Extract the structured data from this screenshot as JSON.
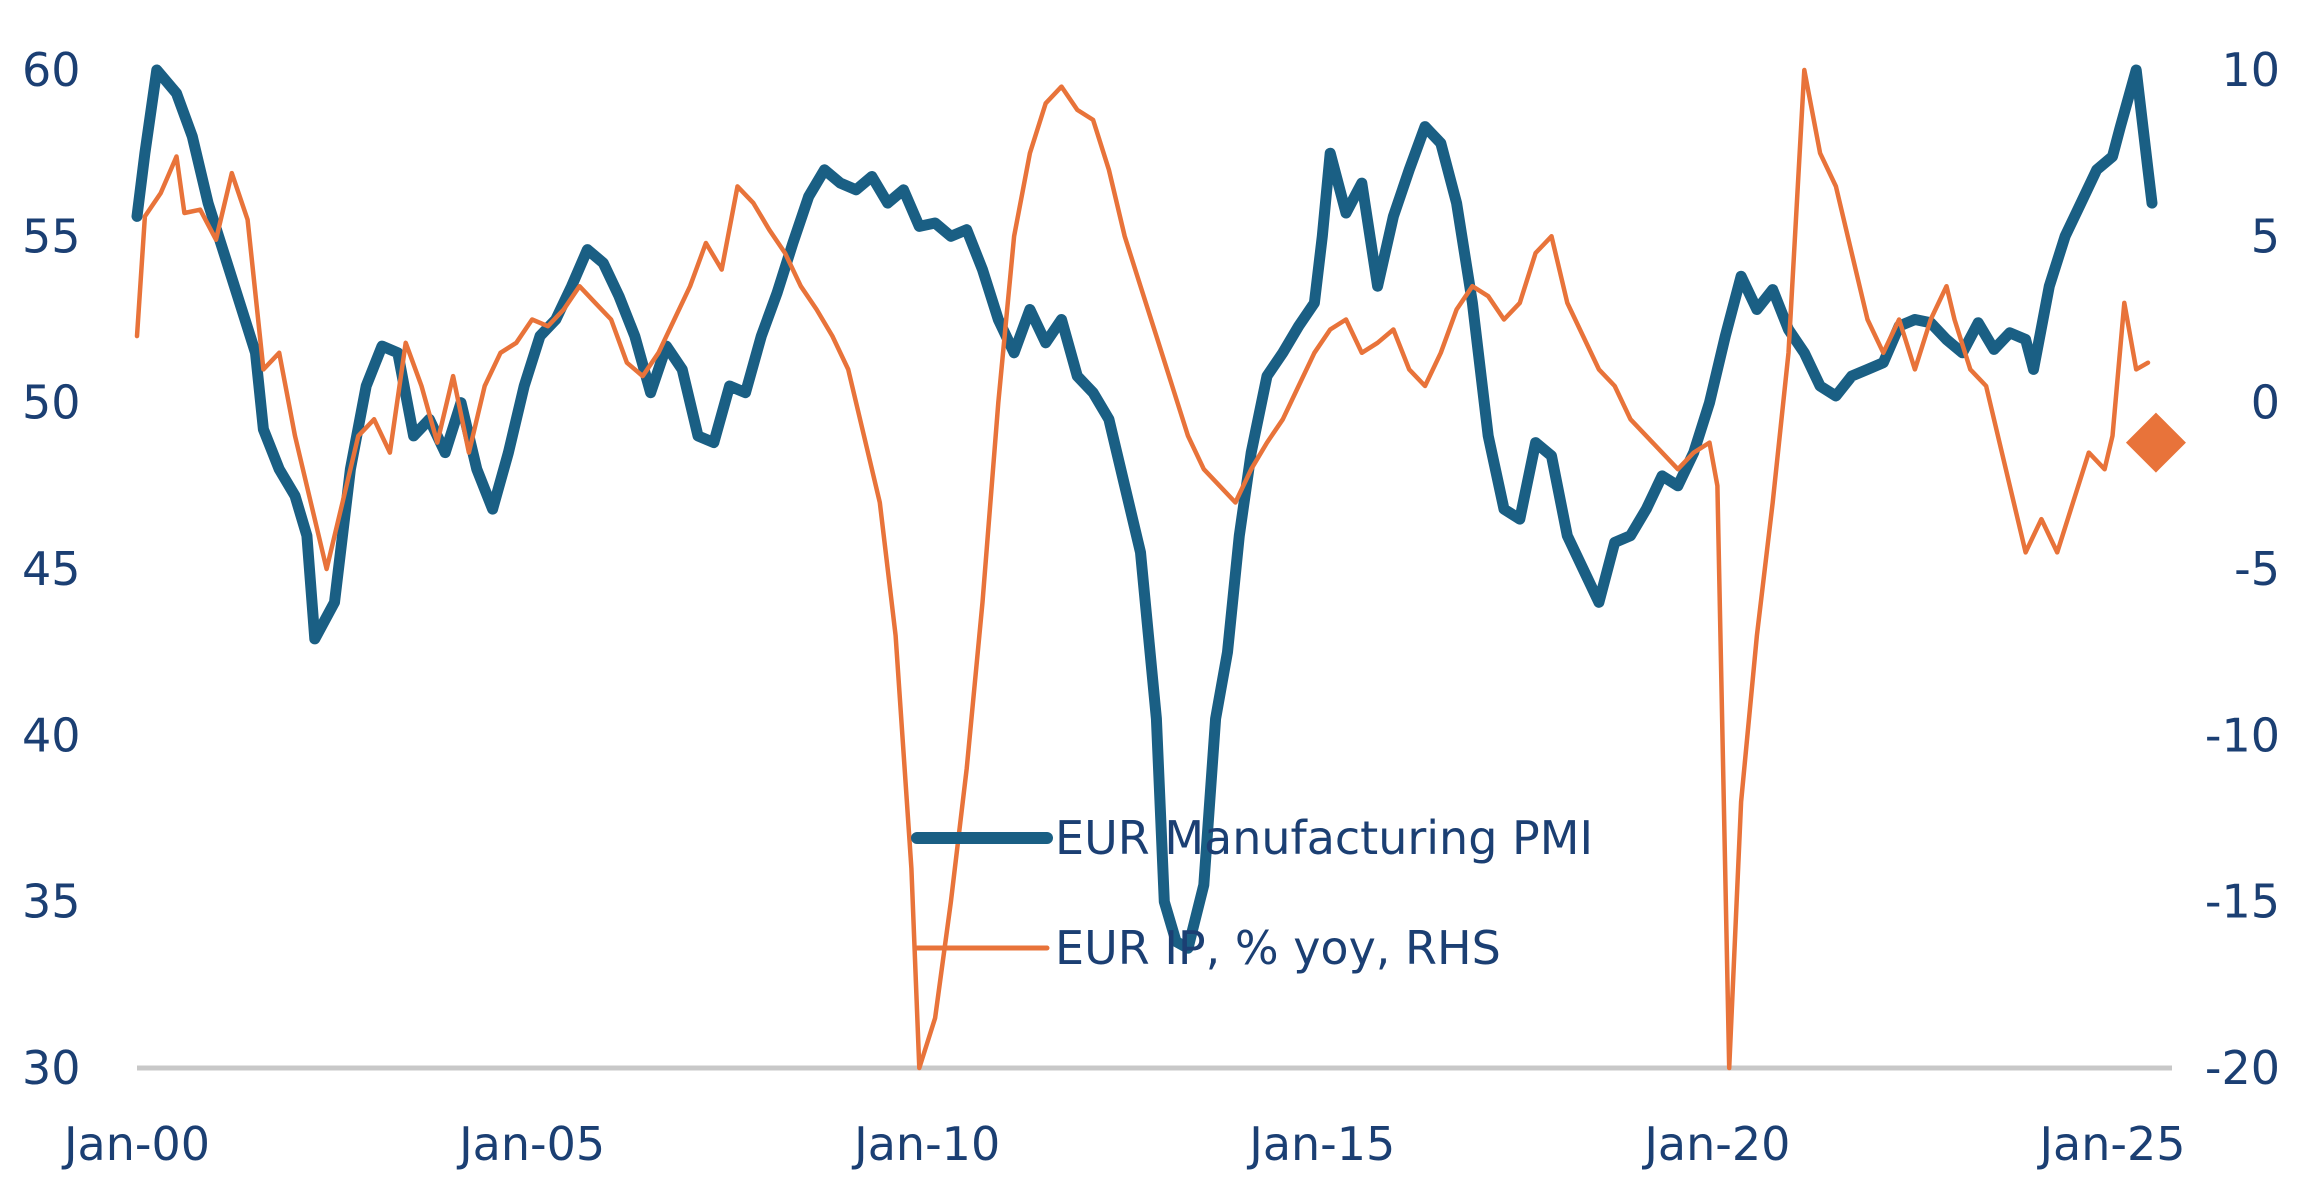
{
  "chart_data": {
    "type": "line",
    "title": "",
    "xlabel": "",
    "ylabel": "",
    "x_start_year": 2000,
    "x_end_year": 2025.5,
    "x_ticks": [
      {
        "label": "Jan-00",
        "year": 2000
      },
      {
        "label": "Jan-05",
        "year": 2005
      },
      {
        "label": "Jan-10",
        "year": 2010
      },
      {
        "label": "Jan-15",
        "year": 2015
      },
      {
        "label": "Jan-20",
        "year": 2020
      },
      {
        "label": "Jan-25",
        "year": 2025
      }
    ],
    "y_left": {
      "min": 30,
      "max": 60,
      "ticks": [
        "60",
        "55",
        "50",
        "45",
        "40",
        "35",
        "30"
      ],
      "values": [
        60,
        55,
        50,
        45,
        40,
        35,
        30
      ]
    },
    "y_right": {
      "min": -20,
      "max": 10,
      "ticks": [
        "10",
        "5",
        "0",
        "-5",
        "-10",
        "-15",
        "-20"
      ],
      "values": [
        10,
        5,
        0,
        -5,
        -10,
        -15,
        -20
      ]
    },
    "grid": false,
    "legend": {
      "position": "center-bottom"
    },
    "series": [
      {
        "name": "EUR Manufacturing PMI",
        "axis": "left",
        "color": "#1a5f84",
        "points": [
          [
            2000.0,
            55.6
          ],
          [
            2000.1,
            57.5
          ],
          [
            2000.25,
            60.0
          ],
          [
            2000.5,
            59.3
          ],
          [
            2000.7,
            58.0
          ],
          [
            2000.9,
            56.0
          ],
          [
            2001.1,
            54.5
          ],
          [
            2001.3,
            53.0
          ],
          [
            2001.5,
            51.5
          ],
          [
            2001.6,
            49.2
          ],
          [
            2001.8,
            48.0
          ],
          [
            2002.0,
            47.2
          ],
          [
            2002.15,
            46.0
          ],
          [
            2002.25,
            42.9
          ],
          [
            2002.5,
            44.0
          ],
          [
            2002.7,
            48.0
          ],
          [
            2002.9,
            50.5
          ],
          [
            2003.1,
            51.7
          ],
          [
            2003.3,
            51.5
          ],
          [
            2003.5,
            49.0
          ],
          [
            2003.7,
            49.5
          ],
          [
            2003.9,
            48.5
          ],
          [
            2004.1,
            50.0
          ],
          [
            2004.3,
            48.0
          ],
          [
            2004.5,
            46.8
          ],
          [
            2004.7,
            48.5
          ],
          [
            2004.9,
            50.5
          ],
          [
            2005.1,
            52.0
          ],
          [
            2005.3,
            52.5
          ],
          [
            2005.5,
            53.5
          ],
          [
            2005.7,
            54.6
          ],
          [
            2005.9,
            54.2
          ],
          [
            2006.1,
            53.2
          ],
          [
            2006.3,
            52.0
          ],
          [
            2006.5,
            50.3
          ],
          [
            2006.7,
            51.7
          ],
          [
            2006.9,
            51.0
          ],
          [
            2007.1,
            49.0
          ],
          [
            2007.3,
            48.8
          ],
          [
            2007.5,
            50.5
          ],
          [
            2007.7,
            50.3
          ],
          [
            2007.9,
            52.0
          ],
          [
            2008.1,
            53.3
          ],
          [
            2008.3,
            54.8
          ],
          [
            2008.5,
            56.2
          ],
          [
            2008.7,
            57.0
          ],
          [
            2008.9,
            56.6
          ],
          [
            2009.1,
            56.4
          ],
          [
            2009.3,
            56.8
          ],
          [
            2009.5,
            56.0
          ],
          [
            2009.7,
            56.4
          ],
          [
            2009.9,
            55.3
          ],
          [
            2010.1,
            55.4
          ],
          [
            2010.3,
            55.0
          ],
          [
            2010.5,
            55.2
          ],
          [
            2010.7,
            54.0
          ],
          [
            2010.9,
            52.5
          ],
          [
            2011.1,
            51.5
          ],
          [
            2011.3,
            52.8
          ],
          [
            2011.5,
            51.8
          ],
          [
            2011.7,
            52.5
          ],
          [
            2011.9,
            50.8
          ],
          [
            2012.1,
            50.3
          ],
          [
            2012.3,
            49.5
          ],
          [
            2012.5,
            47.5
          ],
          [
            2012.7,
            45.5
          ],
          [
            2012.9,
            40.5
          ],
          [
            2013.0,
            35.0
          ],
          [
            2013.15,
            33.8
          ],
          [
            2013.3,
            33.6
          ],
          [
            2013.5,
            35.5
          ],
          [
            2013.65,
            40.5
          ],
          [
            2013.8,
            42.5
          ],
          [
            2013.95,
            46.0
          ],
          [
            2014.1,
            48.5
          ],
          [
            2014.3,
            50.8
          ],
          [
            2014.5,
            51.5
          ],
          [
            2014.7,
            52.3
          ],
          [
            2014.9,
            53.0
          ],
          [
            2015.0,
            55.0
          ],
          [
            2015.1,
            57.5
          ],
          [
            2015.3,
            55.7
          ],
          [
            2015.5,
            56.6
          ],
          [
            2015.7,
            53.5
          ],
          [
            2015.9,
            55.6
          ],
          [
            2016.1,
            57.0
          ],
          [
            2016.3,
            58.3
          ],
          [
            2016.5,
            57.8
          ],
          [
            2016.7,
            56.0
          ],
          [
            2016.9,
            53.0
          ],
          [
            2017.1,
            49.0
          ],
          [
            2017.3,
            46.8
          ],
          [
            2017.5,
            46.5
          ],
          [
            2017.7,
            48.8
          ],
          [
            2017.9,
            48.4
          ],
          [
            2018.1,
            46.0
          ],
          [
            2018.3,
            45.0
          ],
          [
            2018.5,
            44.0
          ],
          [
            2018.7,
            45.8
          ],
          [
            2018.9,
            46.0
          ],
          [
            2019.1,
            46.8
          ],
          [
            2019.3,
            47.8
          ],
          [
            2019.5,
            47.5
          ],
          [
            2019.7,
            48.5
          ],
          [
            2019.9,
            50.0
          ],
          [
            2020.1,
            52.0
          ],
          [
            2020.3,
            53.8
          ],
          [
            2020.5,
            52.8
          ],
          [
            2020.7,
            53.4
          ],
          [
            2020.9,
            52.2
          ],
          [
            2021.1,
            51.5
          ],
          [
            2021.3,
            50.5
          ],
          [
            2021.5,
            50.2
          ],
          [
            2021.7,
            50.8
          ],
          [
            2021.9,
            51.0
          ],
          [
            2022.1,
            51.2
          ],
          [
            2022.3,
            52.3
          ],
          [
            2022.5,
            52.5
          ],
          [
            2022.7,
            52.4
          ],
          [
            2022.9,
            51.9
          ],
          [
            2023.1,
            51.5
          ],
          [
            2023.3,
            52.4
          ],
          [
            2023.5,
            51.6
          ],
          [
            2023.7,
            52.1
          ],
          [
            2023.9,
            51.9
          ],
          [
            2024.0,
            51.0
          ],
          [
            2024.2,
            53.5
          ],
          [
            2024.4,
            55.0
          ],
          [
            2024.6,
            56.0
          ],
          [
            2024.8,
            57.0
          ],
          [
            2025.0,
            57.4
          ],
          [
            2025.1,
            58.3
          ],
          [
            2025.3,
            60.0
          ],
          [
            2025.45,
            57.0
          ],
          [
            2025.5,
            56.0
          ]
        ]
      },
      {
        "name": "EUR IP, % yoy, RHS",
        "axis": "right",
        "color": "#e8733a",
        "points": [
          [
            2000.0,
            2.0
          ],
          [
            2000.1,
            5.6
          ],
          [
            2000.3,
            6.3
          ],
          [
            2000.5,
            7.4
          ],
          [
            2000.6,
            5.7
          ],
          [
            2000.8,
            5.8
          ],
          [
            2001.0,
            4.9
          ],
          [
            2001.2,
            6.9
          ],
          [
            2001.4,
            5.5
          ],
          [
            2001.6,
            1.0
          ],
          [
            2001.8,
            1.5
          ],
          [
            2002.0,
            -1.0
          ],
          [
            2002.2,
            -3.0
          ],
          [
            2002.4,
            -5.0
          ],
          [
            2002.6,
            -3.0
          ],
          [
            2002.8,
            -1.0
          ],
          [
            2003.0,
            -0.5
          ],
          [
            2003.2,
            -1.5
          ],
          [
            2003.4,
            1.8
          ],
          [
            2003.6,
            0.5
          ],
          [
            2003.8,
            -1.2
          ],
          [
            2004.0,
            0.8
          ],
          [
            2004.2,
            -1.5
          ],
          [
            2004.4,
            0.5
          ],
          [
            2004.6,
            1.5
          ],
          [
            2004.8,
            1.8
          ],
          [
            2005.0,
            2.5
          ],
          [
            2005.2,
            2.3
          ],
          [
            2005.4,
            2.8
          ],
          [
            2005.6,
            3.5
          ],
          [
            2005.8,
            3.0
          ],
          [
            2006.0,
            2.5
          ],
          [
            2006.2,
            1.2
          ],
          [
            2006.4,
            0.8
          ],
          [
            2006.6,
            1.5
          ],
          [
            2006.8,
            2.5
          ],
          [
            2007.0,
            3.5
          ],
          [
            2007.2,
            4.8
          ],
          [
            2007.4,
            4.0
          ],
          [
            2007.6,
            6.5
          ],
          [
            2007.8,
            6.0
          ],
          [
            2008.0,
            5.2
          ],
          [
            2008.2,
            4.5
          ],
          [
            2008.4,
            3.5
          ],
          [
            2008.6,
            2.8
          ],
          [
            2008.8,
            2.0
          ],
          [
            2009.0,
            1.0
          ],
          [
            2009.2,
            -1.0
          ],
          [
            2009.4,
            -3.0
          ],
          [
            2009.6,
            -7.0
          ],
          [
            2009.8,
            -14.0
          ],
          [
            2009.9,
            -20.0
          ],
          [
            2010.1,
            -18.5
          ],
          [
            2010.3,
            -15.0
          ],
          [
            2010.5,
            -11.0
          ],
          [
            2010.7,
            -6.0
          ],
          [
            2010.9,
            0.0
          ],
          [
            2011.1,
            5.0
          ],
          [
            2011.3,
            7.5
          ],
          [
            2011.5,
            9.0
          ],
          [
            2011.7,
            9.5
          ],
          [
            2011.9,
            8.8
          ],
          [
            2012.1,
            8.5
          ],
          [
            2012.3,
            7.0
          ],
          [
            2012.5,
            5.0
          ],
          [
            2012.7,
            3.5
          ],
          [
            2012.9,
            2.0
          ],
          [
            2013.1,
            0.5
          ],
          [
            2013.3,
            -1.0
          ],
          [
            2013.5,
            -2.0
          ],
          [
            2013.7,
            -2.5
          ],
          [
            2013.9,
            -3.0
          ],
          [
            2014.1,
            -2.0
          ],
          [
            2014.3,
            -1.2
          ],
          [
            2014.5,
            -0.5
          ],
          [
            2014.7,
            0.5
          ],
          [
            2014.9,
            1.5
          ],
          [
            2015.1,
            2.2
          ],
          [
            2015.3,
            2.5
          ],
          [
            2015.5,
            1.5
          ],
          [
            2015.7,
            1.8
          ],
          [
            2015.9,
            2.2
          ],
          [
            2016.1,
            1.0
          ],
          [
            2016.3,
            0.5
          ],
          [
            2016.5,
            1.5
          ],
          [
            2016.7,
            2.8
          ],
          [
            2016.9,
            3.5
          ],
          [
            2017.1,
            3.2
          ],
          [
            2017.3,
            2.5
          ],
          [
            2017.5,
            3.0
          ],
          [
            2017.7,
            4.5
          ],
          [
            2017.9,
            5.0
          ],
          [
            2018.1,
            3.0
          ],
          [
            2018.3,
            2.0
          ],
          [
            2018.5,
            1.0
          ],
          [
            2018.7,
            0.5
          ],
          [
            2018.9,
            -0.5
          ],
          [
            2019.1,
            -1.0
          ],
          [
            2019.3,
            -1.5
          ],
          [
            2019.5,
            -2.0
          ],
          [
            2019.7,
            -1.5
          ],
          [
            2019.9,
            -1.2
          ],
          [
            2020.0,
            -2.5
          ],
          [
            2020.15,
            -20.0
          ],
          [
            2020.3,
            -12.0
          ],
          [
            2020.5,
            -7.0
          ],
          [
            2020.7,
            -3.0
          ],
          [
            2020.9,
            1.5
          ],
          [
            2021.1,
            10.0
          ],
          [
            2021.3,
            7.5
          ],
          [
            2021.5,
            6.5
          ],
          [
            2021.7,
            4.5
          ],
          [
            2021.9,
            2.5
          ],
          [
            2022.1,
            1.5
          ],
          [
            2022.3,
            2.5
          ],
          [
            2022.5,
            1.0
          ],
          [
            2022.7,
            2.5
          ],
          [
            2022.9,
            3.5
          ],
          [
            2023.0,
            2.5
          ],
          [
            2023.2,
            1.0
          ],
          [
            2023.4,
            0.5
          ],
          [
            2023.6,
            -1.5
          ],
          [
            2023.8,
            -3.5
          ],
          [
            2023.9,
            -4.5
          ],
          [
            2024.1,
            -3.5
          ],
          [
            2024.3,
            -4.5
          ],
          [
            2024.5,
            -3.0
          ],
          [
            2024.7,
            -1.5
          ],
          [
            2024.9,
            -2.0
          ],
          [
            2025.0,
            -1.0
          ],
          [
            2025.15,
            3.0
          ],
          [
            2025.3,
            1.0
          ],
          [
            2025.45,
            1.2
          ]
        ]
      }
    ],
    "marker": {
      "series": "EUR IP, % yoy, RHS",
      "year": 2025.55,
      "value": -1.2,
      "shape": "diamond",
      "color": "#e8733a"
    }
  }
}
